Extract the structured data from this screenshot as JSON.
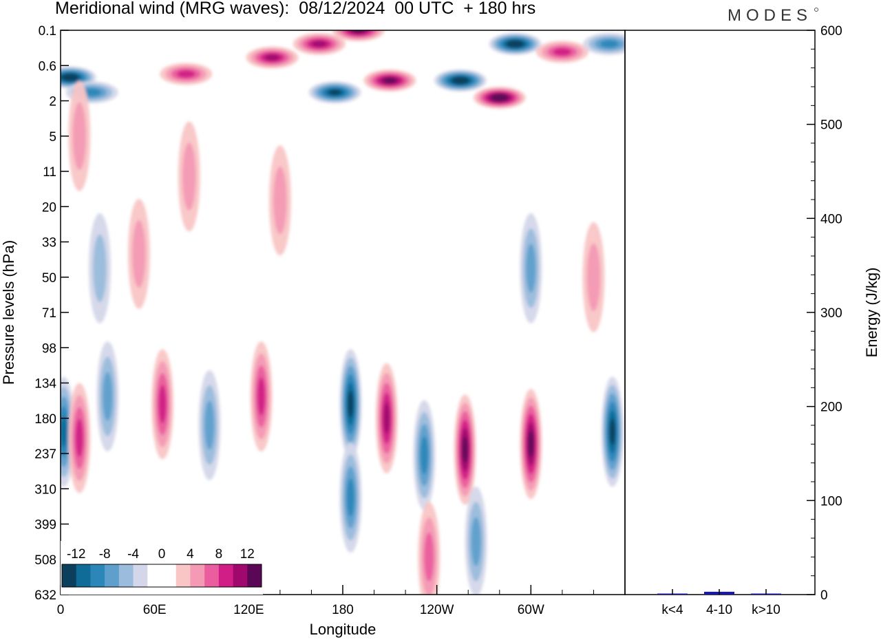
{
  "chart_data": [
    {
      "type": "heatmap",
      "title": "Meridional wind (MRG waves):  08/12/2024  00 UTC  + 180 hrs",
      "xlabel": "Longitude",
      "ylabel": "Pressure levels (hPa)",
      "x_ticks": [
        "0",
        "60E",
        "120E",
        "180",
        "120W",
        "60W"
      ],
      "x_tick_deg": [
        0,
        60,
        120,
        180,
        240,
        300
      ],
      "xlim": [
        0,
        360
      ],
      "y_ticks": [
        "0.1",
        "0.6",
        "2",
        "5",
        "11",
        "20",
        "33",
        "50",
        "71",
        "98",
        "134",
        "180",
        "237",
        "310",
        "399",
        "508",
        "632"
      ],
      "colorbar": {
        "labels": [
          "-12",
          "-8",
          "-4",
          "0",
          "4",
          "8",
          "12"
        ],
        "colors": [
          "#0b3f5c",
          "#0f6c98",
          "#2c87b8",
          "#5f9fcc",
          "#9bbcdc",
          "#d4d7e9",
          "#ffffff",
          "#ffffff",
          "#f9c5c5",
          "#f49ab5",
          "#ea5d9e",
          "#d11d86",
          "#a0086e",
          "#5a0757"
        ]
      },
      "features": [
        {
          "lon": 6,
          "level": 0.9,
          "value": -14
        },
        {
          "lon": 20,
          "level": 1.5,
          "value": -8
        },
        {
          "lon": 80,
          "level": 0.8,
          "value": 8
        },
        {
          "lon": 135,
          "level": 0.4,
          "value": 10
        },
        {
          "lon": 165,
          "level": 0.2,
          "value": 11
        },
        {
          "lon": 190,
          "level": 0.1,
          "value": 12
        },
        {
          "lon": 175,
          "level": 1.5,
          "value": -12
        },
        {
          "lon": 210,
          "level": 1.0,
          "value": 12
        },
        {
          "lon": 255,
          "level": 1.0,
          "value": -14
        },
        {
          "lon": 280,
          "level": 1.8,
          "value": 14
        },
        {
          "lon": 290,
          "level": 0.2,
          "value": -14
        },
        {
          "lon": 320,
          "level": 0.3,
          "value": 9
        },
        {
          "lon": 350,
          "level": 0.2,
          "value": -8
        },
        {
          "lon": 12,
          "level": 5,
          "value": 4
        },
        {
          "lon": 82,
          "level": 12,
          "value": 4
        },
        {
          "lon": 140,
          "level": 18,
          "value": 4
        },
        {
          "lon": 25,
          "level": 45,
          "value": -4
        },
        {
          "lon": 50,
          "level": 38,
          "value": 4
        },
        {
          "lon": 300,
          "level": 45,
          "value": -6
        },
        {
          "lon": 340,
          "level": 50,
          "value": 4
        },
        {
          "lon": 2,
          "level": 200,
          "value": -10
        },
        {
          "lon": 12,
          "level": 210,
          "value": 8
        },
        {
          "lon": 30,
          "level": 150,
          "value": -7
        },
        {
          "lon": 65,
          "level": 160,
          "value": 8
        },
        {
          "lon": 95,
          "level": 190,
          "value": -6
        },
        {
          "lon": 128,
          "level": 150,
          "value": 8
        },
        {
          "lon": 185,
          "level": 160,
          "value": -13
        },
        {
          "lon": 208,
          "level": 180,
          "value": 11
        },
        {
          "lon": 232,
          "level": 240,
          "value": -9
        },
        {
          "lon": 258,
          "level": 230,
          "value": 12
        },
        {
          "lon": 300,
          "level": 220,
          "value": 13
        },
        {
          "lon": 352,
          "level": 200,
          "value": -13
        },
        {
          "lon": 185,
          "level": 330,
          "value": -9
        },
        {
          "lon": 265,
          "level": 450,
          "value": -7
        },
        {
          "lon": 235,
          "level": 500,
          "value": 6
        }
      ]
    },
    {
      "type": "bar",
      "categories": [
        "k<4",
        "4-10",
        "k>10"
      ],
      "values": [
        0.5,
        3,
        0.3
      ],
      "ylabel": "Energy (J/kg)",
      "ylim": [
        0,
        600
      ],
      "y_ticks": [
        "0",
        "100",
        "200",
        "300",
        "400",
        "500",
        "600"
      ],
      "y_tick_values": [
        0,
        100,
        200,
        300,
        400,
        500,
        600
      ],
      "bar_color": "#1a1aa0"
    }
  ],
  "brand": "MODES"
}
